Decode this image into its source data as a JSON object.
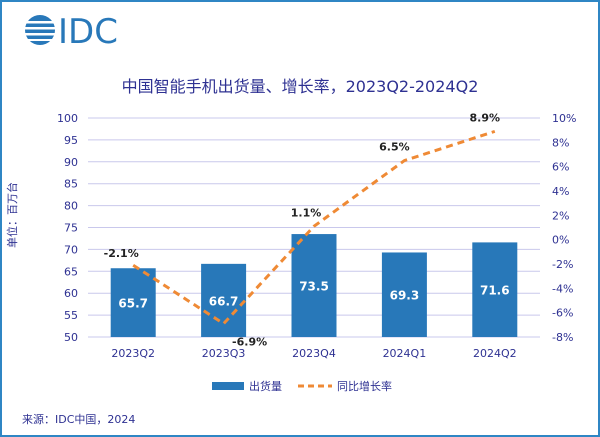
{
  "logo_text": "IDC",
  "source": "来源：IDC中国，2024",
  "colors": {
    "bar": "#2878b9",
    "line": "#ef8a35",
    "text": "#2e3192",
    "grid": "#c9c8ec",
    "border": "#2f86c4"
  },
  "chart_data": {
    "type": "bar+line",
    "title": "中国智能手机出货量、增长率，2023Q2-2024Q2",
    "ylabel": "单位：百万台",
    "categories": [
      "2023Q2",
      "2023Q3",
      "2023Q4",
      "2024Q1",
      "2024Q2"
    ],
    "series": [
      {
        "name": "出货量",
        "type": "bar",
        "axis": "left",
        "values": [
          65.7,
          66.7,
          73.5,
          69.3,
          71.6
        ],
        "labels": [
          "65.7",
          "66.7",
          "73.5",
          "69.3",
          "71.6"
        ]
      },
      {
        "name": "同比增长率",
        "type": "line",
        "style": "dashed",
        "axis": "right",
        "values": [
          -2.1,
          -6.9,
          1.1,
          6.5,
          8.9
        ],
        "labels": [
          "-2.1%",
          "-6.9%",
          "1.1%",
          "6.5%",
          "8.9%"
        ]
      }
    ],
    "ylim_left": [
      50,
      100
    ],
    "yticks_left": [
      "50",
      "55",
      "60",
      "65",
      "70",
      "75",
      "80",
      "85",
      "90",
      "95",
      "100"
    ],
    "ylim_right": [
      -8,
      10
    ],
    "yticks_right": [
      "-8%",
      "-6%",
      "-4%",
      "-2%",
      "0%",
      "2%",
      "4%",
      "6%",
      "8%",
      "10%"
    ],
    "grid": true,
    "legend": "bottom"
  }
}
